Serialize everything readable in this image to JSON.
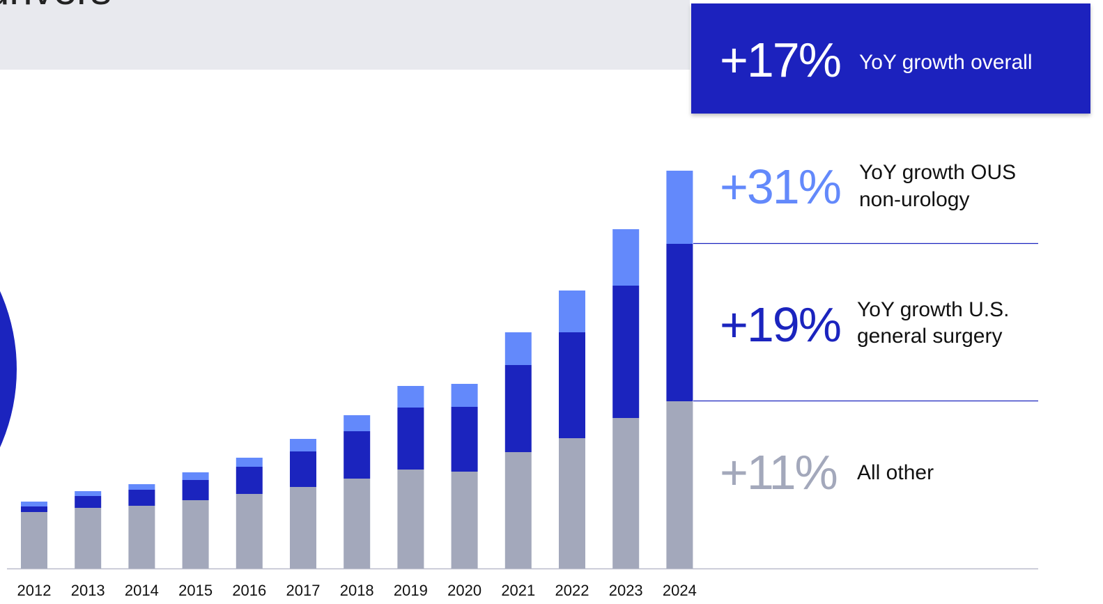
{
  "chart_data": {
    "type": "bar",
    "stacked": true,
    "title": "drivers",
    "categories": [
      "2012",
      "2013",
      "2014",
      "2015",
      "2016",
      "2017",
      "2018",
      "2019",
      "2020",
      "2021",
      "2022",
      "2023",
      "2024"
    ],
    "series": [
      {
        "color": "#a3a8bb",
        "values": [
          81,
          87,
          90,
          98,
          107,
          117,
          129,
          142,
          139,
          167,
          187,
          216,
          240
        ]
      },
      {
        "color": "#1b24be",
        "values": [
          8,
          17,
          23,
          29,
          39,
          51,
          68,
          89,
          93,
          125,
          152,
          190,
          226
        ]
      },
      {
        "color": "#6389fb",
        "values": [
          7,
          7,
          8,
          11,
          13,
          18,
          23,
          31,
          33,
          47,
          60,
          81,
          105
        ]
      }
    ],
    "annotations": [
      {
        "growth": "+17%",
        "lines": [
          "YoY growth overall"
        ],
        "color": "#ffffff"
      },
      {
        "growth": "+31%",
        "lines": [
          "YoY growth OUS",
          "non-urology"
        ],
        "color": "#6389fb"
      },
      {
        "growth": "+19%",
        "lines": [
          "YoY growth U.S.",
          "general surgery"
        ],
        "color": "#1b24be"
      },
      {
        "growth": "+11%",
        "lines": [
          "All other"
        ],
        "color": "#a3a8bb"
      }
    ]
  }
}
